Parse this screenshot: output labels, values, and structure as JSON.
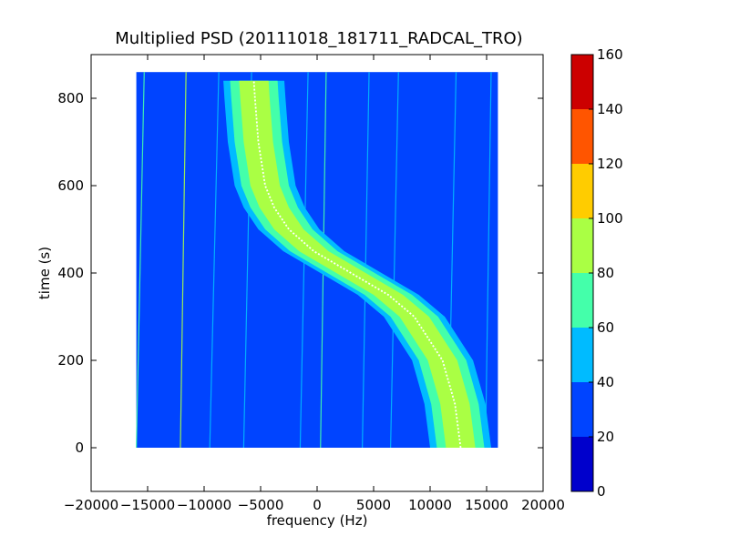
{
  "chart_data": {
    "type": "heatmap",
    "title": "Multiplied PSD (20111018_181711_RADCAL_TRO)",
    "xlabel": "frequency (Hz)",
    "ylabel": "time (s)",
    "xlim": [
      -20000,
      20000
    ],
    "ylim": [
      -100,
      900
    ],
    "x_ticks": [
      -20000,
      -15000,
      -10000,
      -5000,
      0,
      5000,
      10000,
      15000,
      20000
    ],
    "x_tick_labels": [
      "−20000",
      "−15000",
      "−10000",
      "−5000",
      "0",
      "5000",
      "10000",
      "15000",
      "20000"
    ],
    "y_ticks": [
      0,
      200,
      400,
      600,
      800
    ],
    "y_tick_labels": [
      "0",
      "200",
      "400",
      "600",
      "800"
    ],
    "data_extent": {
      "x": [
        -16000,
        16000
      ],
      "y": [
        0,
        860
      ]
    },
    "background_level": 30,
    "colorbar": {
      "min": 0,
      "max": 160,
      "ticks": [
        0,
        20,
        40,
        60,
        80,
        100,
        120,
        140,
        160
      ],
      "tick_labels": [
        "0",
        "20",
        "40",
        "60",
        "80",
        "100",
        "120",
        "140",
        "160"
      ],
      "levels": [
        {
          "from": 0,
          "to": 20,
          "color": "#0000cc"
        },
        {
          "from": 20,
          "to": 40,
          "color": "#0044ff"
        },
        {
          "from": 40,
          "to": 60,
          "color": "#00bbff"
        },
        {
          "from": 60,
          "to": 80,
          "color": "#44ffaa"
        },
        {
          "from": 80,
          "to": 100,
          "color": "#aaff44"
        },
        {
          "from": 100,
          "to": 120,
          "color": "#ffcc00"
        },
        {
          "from": 120,
          "to": 140,
          "color": "#ff5500"
        },
        {
          "from": 140,
          "to": 160,
          "color": "#cc0000"
        }
      ]
    },
    "doppler_track": {
      "description_levels": {
        "outer_edge": 40,
        "mid_band": 60,
        "core": 80,
        "center_line": 100
      },
      "points": [
        {
          "t": 0,
          "f": 12700
        },
        {
          "t": 100,
          "f": 12200
        },
        {
          "t": 200,
          "f": 11100
        },
        {
          "t": 300,
          "f": 8600
        },
        {
          "t": 350,
          "f": 6300
        },
        {
          "t": 400,
          "f": 3000
        },
        {
          "t": 450,
          "f": -300
        },
        {
          "t": 500,
          "f": -2500
        },
        {
          "t": 550,
          "f": -3800
        },
        {
          "t": 600,
          "f": -4600
        },
        {
          "t": 700,
          "f": -5200
        },
        {
          "t": 800,
          "f": -5500
        },
        {
          "t": 840,
          "f": -5600
        }
      ],
      "half_widths_hz": {
        "core": 1300,
        "mid_band": 2100,
        "outer_edge": 2700
      }
    },
    "tones": [
      {
        "f0": -16000,
        "f1": -15300,
        "level": 70
      },
      {
        "f0": -12100,
        "f1": -11600,
        "level": 80
      },
      {
        "f0": -9500,
        "f1": -8700,
        "level": 50
      },
      {
        "f0": -6500,
        "f1": -5800,
        "level": 45
      },
      {
        "f0": -1500,
        "f1": -800,
        "level": 45
      },
      {
        "f0": 300,
        "f1": 800,
        "level": 70
      },
      {
        "f0": 4000,
        "f1": 4600,
        "level": 45
      },
      {
        "f0": 6500,
        "f1": 7200,
        "level": 45
      },
      {
        "f0": 11600,
        "f1": 12300,
        "level": 50
      },
      {
        "f0": 14900,
        "f1": 15400,
        "level": 45
      }
    ]
  }
}
